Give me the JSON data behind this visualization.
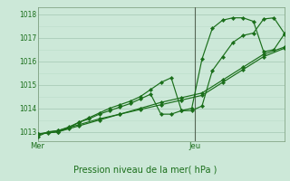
{
  "background_color": "#cce8d8",
  "grid_major_color": "#aaccb8",
  "grid_minor_color": "#bbddc8",
  "line_color": "#1a6e1a",
  "vline_color": "#556655",
  "title": "Pression niveau de la mer( hPa )",
  "xlabel_mer": "Mer",
  "xlabel_jeu": "Jeu",
  "ylim": [
    1012.6,
    1018.3
  ],
  "yticks": [
    1013,
    1014,
    1015,
    1016,
    1017,
    1018
  ],
  "xlim": [
    0,
    72
  ],
  "mer_x": 0,
  "jeu_x": 46,
  "total_hours": 72,
  "line1_x": [
    0,
    3,
    6,
    9,
    12,
    15,
    18,
    21,
    24,
    27,
    30,
    33,
    36,
    39,
    42,
    45,
    48,
    51,
    54,
    57,
    60,
    63,
    66,
    69,
    72
  ],
  "line1_y": [
    1012.8,
    1013.0,
    1013.05,
    1013.2,
    1013.4,
    1013.6,
    1013.8,
    1014.0,
    1014.15,
    1014.3,
    1014.5,
    1014.8,
    1015.1,
    1015.3,
    1013.9,
    1013.9,
    1014.1,
    1015.6,
    1016.2,
    1016.8,
    1017.1,
    1017.2,
    1017.8,
    1017.85,
    1017.2
  ],
  "line2_x": [
    0,
    6,
    12,
    18,
    24,
    30,
    36,
    42,
    48,
    54,
    60,
    66,
    72
  ],
  "line2_y": [
    1012.9,
    1013.05,
    1013.3,
    1013.55,
    1013.75,
    1013.95,
    1014.15,
    1014.35,
    1014.55,
    1015.1,
    1015.65,
    1016.2,
    1016.55
  ],
  "line3_x": [
    0,
    6,
    12,
    18,
    24,
    30,
    36,
    42,
    48,
    54,
    60,
    66,
    72
  ],
  "line3_y": [
    1012.9,
    1013.0,
    1013.25,
    1013.5,
    1013.75,
    1014.0,
    1014.25,
    1014.45,
    1014.65,
    1015.2,
    1015.75,
    1016.3,
    1016.6
  ],
  "line4_x": [
    0,
    3,
    6,
    9,
    12,
    15,
    18,
    21,
    24,
    27,
    30,
    33,
    36,
    39,
    42,
    45,
    48,
    51,
    54,
    57,
    60,
    63,
    66,
    69,
    72
  ],
  "line4_y": [
    1012.9,
    1012.95,
    1013.0,
    1013.15,
    1013.4,
    1013.55,
    1013.75,
    1013.9,
    1014.05,
    1014.2,
    1014.4,
    1014.6,
    1013.75,
    1013.75,
    1013.9,
    1014.0,
    1016.1,
    1017.4,
    1017.75,
    1017.85,
    1017.85,
    1017.7,
    1016.4,
    1016.5,
    1017.15
  ]
}
